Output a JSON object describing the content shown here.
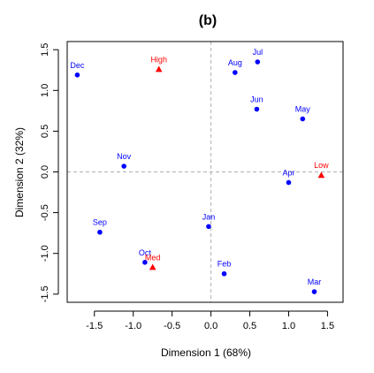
{
  "chart_data": {
    "type": "scatter",
    "title": "(b)",
    "xlabel": "Dimension 1 (68%)",
    "ylabel": "Dimension 2 (32%)",
    "xlim": [
      -1.85,
      1.7
    ],
    "ylim": [
      -1.6,
      1.6
    ],
    "x_ticks": [
      -1.5,
      -1.0,
      -0.5,
      0.0,
      0.5,
      1.0,
      1.5
    ],
    "x_tick_labels": [
      "-1.5",
      "-1.0",
      "-0.5",
      "0.0",
      "0.5",
      "1.0",
      "1.5"
    ],
    "y_ticks": [
      -1.5,
      -1.0,
      -0.5,
      0.0,
      0.5,
      1.0,
      1.5
    ],
    "y_tick_labels": [
      "-1.5",
      "-1.0",
      "-0.5",
      "0.0",
      "0.5",
      "1.0",
      "1.5"
    ],
    "reference_lines": {
      "x": 0,
      "y": 0,
      "style": "dashed",
      "color": "#b0b0b0"
    },
    "grid": false,
    "series": [
      {
        "marker": "circle",
        "color": "#0000ff",
        "points": [
          {
            "label": "Jan",
            "x": -0.03,
            "y": -0.67
          },
          {
            "label": "Feb",
            "x": 0.17,
            "y": -1.25
          },
          {
            "label": "Mar",
            "x": 1.33,
            "y": -1.47
          },
          {
            "label": "Apr",
            "x": 1.0,
            "y": -0.13
          },
          {
            "label": "May",
            "x": 1.18,
            "y": 0.65
          },
          {
            "label": "Jun",
            "x": 0.59,
            "y": 0.77
          },
          {
            "label": "Jul",
            "x": 0.6,
            "y": 1.35
          },
          {
            "label": "Aug",
            "x": 0.31,
            "y": 1.22
          },
          {
            "label": "Sep",
            "x": -1.43,
            "y": -0.74
          },
          {
            "label": "Oct",
            "x": -0.85,
            "y": -1.11
          },
          {
            "label": "Nov",
            "x": -1.12,
            "y": 0.07
          },
          {
            "label": "Dec",
            "x": -1.72,
            "y": 1.19
          }
        ]
      },
      {
        "marker": "triangle",
        "color": "#ff0000",
        "points": [
          {
            "label": "High",
            "x": -0.67,
            "y": 1.26
          },
          {
            "label": "Med",
            "x": -0.75,
            "y": -1.17
          },
          {
            "label": "Low",
            "x": 1.42,
            "y": -0.04
          }
        ]
      }
    ]
  }
}
